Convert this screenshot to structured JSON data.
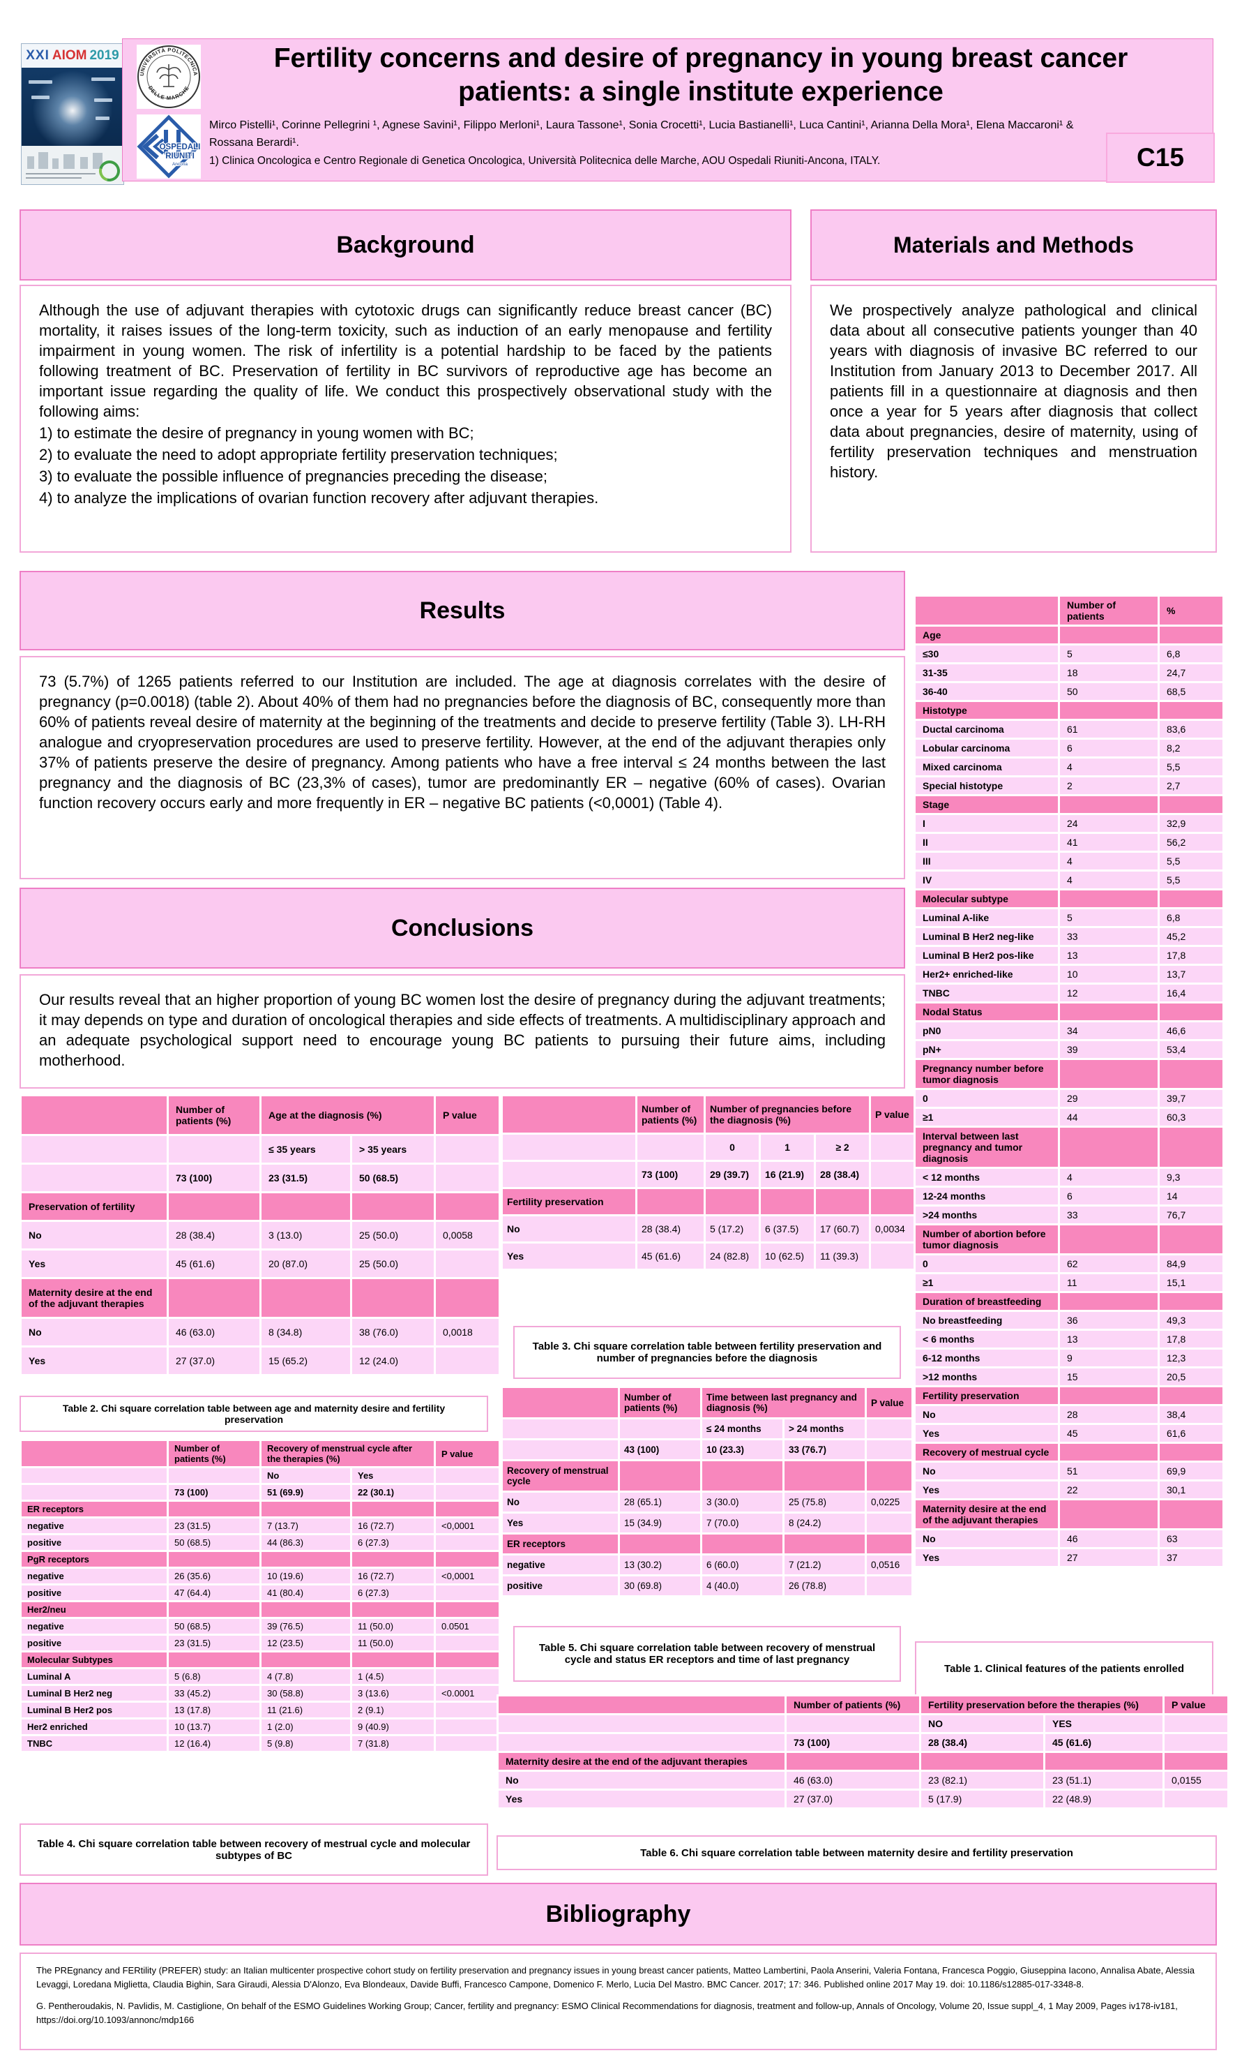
{
  "header": {
    "title_line1": "Fertility concerns and desire of pregnancy in young breast cancer",
    "title_line2": "patients: a single institute experience",
    "authors": "Mirco Pistelli¹, Corinne Pellegrini ¹, Agnese Savini¹, Filippo Merloni¹, Laura Tassone¹, Sonia Crocetti¹, Lucia Bastianelli¹, Luca Cantini¹,  Arianna Della Mora¹, Elena Maccaroni¹ & Rossana Berardi¹.",
    "affiliation": "1) Clinica Oncologica e Centro Regionale di Genetica Oncologica, Università Politecnica delle Marche, AOU Ospedali Riuniti-Ancona,  ITALY.",
    "badge": "C15",
    "congress": {
      "xxi": "XXI",
      "aiom": "AIOM",
      "year": "2019"
    },
    "university_seal": {
      "top": "UNIVERSITÀ POLITECNICA",
      "bottom": "DELLE MARCHE"
    },
    "hospital": {
      "line1": "OSPEDALI",
      "line2": "RIUNITI",
      "line3": "Ancona"
    }
  },
  "background": {
    "title": "Background",
    "intro": "Although the use of adjuvant therapies with cytotoxic drugs can significantly reduce breast cancer (BC) mortality, it raises issues of the long-term toxicity, such as induction of an early menopause and fertility impairment in young women. The risk of infertility is a potential hardship to be faced by the patients following treatment of BC. Preservation of fertility in BC survivors of reproductive age has become an important issue regarding the quality of life. We conduct this prospectively observational study with the following aims:",
    "aims": [
      "1)   to estimate the desire of pregnancy in young women with BC;",
      "2)   to evaluate the need to adopt appropriate fertility preservation techniques;",
      "3)   to evaluate the possible influence of pregnancies preceding the disease;",
      "4)   to analyze the implications of ovarian function recovery after adjuvant therapies."
    ]
  },
  "methods": {
    "title": "Materials and Methods",
    "body": "We prospectively analyze pathological and clinical data about all consecutive patients younger than 40 years with diagnosis of invasive BC referred to our Institution from January 2013 to December 2017. All patients fill in a questionnaire at diagnosis and then once a year for 5 years after diagnosis that collect data about pregnancies, desire of maternity, using of fertility preservation techniques and menstruation history."
  },
  "results": {
    "title": "Results",
    "body": "73 (5.7%) of 1265 patients referred to our Institution are included. The age at diagnosis correlates with the desire of pregnancy (p=0.0018) (table 2). About 40% of them had no pregnancies before the diagnosis of BC, consequently more than 60% of patients reveal desire of maternity at the beginning of the treatments and decide to preserve fertility (Table 3). LH-RH analogue and cryopreservation procedures are used to preserve fertility. However, at the end of the adjuvant therapies only 37% of patients preserve the desire of pregnancy. Among patients who have a free interval ≤ 24 months between the last pregnancy and the diagnosis of BC (23,3% of cases), tumor are predominantly ER – negative (60% of cases). Ovarian function recovery occurs early and more frequently in ER – negative BC patients (<0,0001) (Table 4)."
  },
  "conclusions": {
    "title": "Conclusions",
    "body": "Our results reveal that an higher proportion of young BC women lost the desire of pregnancy during the adjuvant treatments; it may depends on type and duration of oncological therapies and side effects of treatments. A multidisciplinary approach and an adequate psychological support need to encourage young BC patients to pursuing their future aims, including motherhood."
  },
  "table1": {
    "caption": "Table 1. Clinical features of the patients enrolled",
    "headers": [
      "",
      "Number of patients",
      "%"
    ],
    "rows": [
      {
        "type": "section",
        "label": "Age"
      },
      {
        "type": "data",
        "label": "≤30",
        "n": "5",
        "pct": "6,8"
      },
      {
        "type": "data",
        "label": "31-35",
        "n": "18",
        "pct": "24,7"
      },
      {
        "type": "data",
        "label": "36-40",
        "n": "50",
        "pct": "68,5"
      },
      {
        "type": "section",
        "label": "Histotype"
      },
      {
        "type": "data",
        "label": "Ductal carcinoma",
        "n": "61",
        "pct": "83,6"
      },
      {
        "type": "data",
        "label": "Lobular carcinoma",
        "n": "6",
        "pct": "8,2"
      },
      {
        "type": "data",
        "label": "Mixed carcinoma",
        "n": "4",
        "pct": "5,5"
      },
      {
        "type": "data",
        "label": "Special histotype",
        "n": "2",
        "pct": "2,7"
      },
      {
        "type": "section",
        "label": "Stage"
      },
      {
        "type": "data",
        "label": "I",
        "n": "24",
        "pct": "32,9"
      },
      {
        "type": "data",
        "label": "II",
        "n": "41",
        "pct": "56,2"
      },
      {
        "type": "data",
        "label": "III",
        "n": "4",
        "pct": "5,5"
      },
      {
        "type": "data",
        "label": "IV",
        "n": "4",
        "pct": "5,5"
      },
      {
        "type": "section",
        "label": "Molecular subtype"
      },
      {
        "type": "data",
        "label": "Luminal A-like",
        "n": "5",
        "pct": "6,8"
      },
      {
        "type": "data",
        "label": "Luminal B Her2 neg-like",
        "n": "33",
        "pct": "45,2"
      },
      {
        "type": "data",
        "label": "Luminal B Her2 pos-like",
        "n": "13",
        "pct": "17,8"
      },
      {
        "type": "data",
        "label": "Her2+ enriched-like",
        "n": "10",
        "pct": "13,7"
      },
      {
        "type": "data",
        "label": "TNBC",
        "n": "12",
        "pct": "16,4"
      },
      {
        "type": "section",
        "label": "Nodal Status"
      },
      {
        "type": "data",
        "label": "pN0",
        "n": "34",
        "pct": "46,6"
      },
      {
        "type": "data",
        "label": "pN+",
        "n": "39",
        "pct": "53,4"
      },
      {
        "type": "section",
        "label": "Pregnancy number before tumor diagnosis"
      },
      {
        "type": "data",
        "label": "0",
        "n": "29",
        "pct": "39,7"
      },
      {
        "type": "data",
        "label": "≥1",
        "n": "44",
        "pct": "60,3"
      },
      {
        "type": "section",
        "label": "Interval between last pregnancy and tumor diagnosis"
      },
      {
        "type": "data",
        "label": "< 12 months",
        "n": "4",
        "pct": "9,3"
      },
      {
        "type": "data",
        "label": "12-24 months",
        "n": "6",
        "pct": "14"
      },
      {
        "type": "data",
        "label": ">24 months",
        "n": "33",
        "pct": "76,7"
      },
      {
        "type": "section",
        "label": "Number of abortion before tumor diagnosis"
      },
      {
        "type": "data",
        "label": "0",
        "n": "62",
        "pct": "84,9"
      },
      {
        "type": "data",
        "label": "≥1",
        "n": "11",
        "pct": "15,1"
      },
      {
        "type": "section",
        "label": "Duration of breastfeeding"
      },
      {
        "type": "data",
        "label": "No breastfeeding",
        "n": "36",
        "pct": "49,3"
      },
      {
        "type": "data",
        "label": "< 6 months",
        "n": "13",
        "pct": "17,8"
      },
      {
        "type": "data",
        "label": "6-12 months",
        "n": "9",
        "pct": "12,3"
      },
      {
        "type": "data",
        "label": ">12 months",
        "n": "15",
        "pct": "20,5"
      },
      {
        "type": "section",
        "label": "Fertility preservation"
      },
      {
        "type": "data",
        "label": "No",
        "n": "28",
        "pct": "38,4"
      },
      {
        "type": "data",
        "label": "Yes",
        "n": "45",
        "pct": "61,6"
      },
      {
        "type": "section",
        "label": "Recovery of mestrual cycle"
      },
      {
        "type": "data",
        "label": "No",
        "n": "51",
        "pct": "69,9"
      },
      {
        "type": "data",
        "label": "Yes",
        "n": "22",
        "pct": "30,1"
      },
      {
        "type": "section",
        "label": "Maternity desire at the end of the adjuvant therapies"
      },
      {
        "type": "data",
        "label": "No",
        "n": "46",
        "pct": "63"
      },
      {
        "type": "data",
        "label": "Yes",
        "n": "27",
        "pct": "37"
      }
    ]
  },
  "table2": {
    "caption": "Table 2. Chi square correlation table between age and maternity desire and fertility preservation",
    "col_n": "Number of patients (%)",
    "group": "Age at the diagnosis (%)",
    "group_cols": [
      "≤ 35 years",
      "> 35 years"
    ],
    "col_p": "P value",
    "total": {
      "n": "73 (100)",
      "cells": [
        "23 (31.5)",
        "50 (68.5)"
      ]
    },
    "sections": [
      {
        "label": "Preservation of fertility",
        "rows": [
          {
            "label": "No",
            "n": "28 (38.4)",
            "cells": [
              "3 (13.0)",
              "25 (50.0)"
            ],
            "p": "0,0058"
          },
          {
            "label": "Yes",
            "n": "45 (61.6)",
            "cells": [
              "20 (87.0)",
              "25 (50.0)"
            ],
            "p": ""
          }
        ]
      },
      {
        "label": "Maternity desire at the end of the adjuvant therapies",
        "rows": [
          {
            "label": "No",
            "n": "46 (63.0)",
            "cells": [
              "8 (34.8)",
              "38 (76.0)"
            ],
            "p": "0,0018"
          },
          {
            "label": "Yes",
            "n": "27 (37.0)",
            "cells": [
              "15 (65.2)",
              "12 (24.0)"
            ],
            "p": ""
          }
        ]
      }
    ]
  },
  "table3": {
    "caption": "Table 3. Chi square correlation table between fertility preservation and number of pregnancies before the diagnosis",
    "col_n": "Number of patients (%)",
    "group": "Number of pregnancies before the diagnosis (%)",
    "group_cols": [
      "0",
      "1",
      "≥ 2"
    ],
    "col_p": "P value",
    "total": {
      "n": "73 (100)",
      "cells": [
        "29 (39.7)",
        "16 (21.9)",
        "28 (38.4)"
      ]
    },
    "sections": [
      {
        "label": "Fertility preservation",
        "rows": [
          {
            "label": "No",
            "n": "28 (38.4)",
            "cells": [
              "5 (17.2)",
              "6 (37.5)",
              "17 (60.7)"
            ],
            "p": "0,0034"
          },
          {
            "label": "Yes",
            "n": "45 (61.6)",
            "cells": [
              "24 (82.8)",
              "10 (62.5)",
              "11 (39.3)"
            ],
            "p": ""
          }
        ]
      }
    ]
  },
  "table4": {
    "caption": "Table 4. Chi square correlation table between recovery of mestrual cycle and molecular subtypes of BC",
    "col_n": "Number of patients (%)",
    "group": "Recovery of menstrual cycle after the therapies (%)",
    "group_cols": [
      "No",
      "Yes"
    ],
    "col_p": "P value",
    "total": {
      "n": "73 (100)",
      "cells": [
        "51 (69.9)",
        "22 (30.1)"
      ]
    },
    "sections": [
      {
        "label": "ER receptors",
        "rows": [
          {
            "label": "negative",
            "n": "23 (31.5)",
            "cells": [
              "7 (13.7)",
              "16 (72.7)"
            ],
            "p": "<0,0001"
          },
          {
            "label": "positive",
            "n": "50 (68.5)",
            "cells": [
              "44 (86.3)",
              "6 (27.3)"
            ],
            "p": ""
          }
        ]
      },
      {
        "label": "PgR receptors",
        "rows": [
          {
            "label": "negative",
            "n": "26 (35.6)",
            "cells": [
              "10 (19.6)",
              "16 (72.7)"
            ],
            "p": "<0,0001"
          },
          {
            "label": "positive",
            "n": "47 (64.4)",
            "cells": [
              "41 (80.4)",
              "6 (27.3)"
            ],
            "p": ""
          }
        ]
      },
      {
        "label": "Her2/neu",
        "rows": [
          {
            "label": "negative",
            "n": "50 (68.5)",
            "cells": [
              "39 (76.5)",
              "11 (50.0)"
            ],
            "p": "0.0501"
          },
          {
            "label": "positive",
            "n": "23 (31.5)",
            "cells": [
              "12 (23.5)",
              "11 (50.0)"
            ],
            "p": ""
          }
        ]
      },
      {
        "label": "Molecular Subtypes",
        "rows": [
          {
            "label": "Luminal A",
            "n": "5 (6.8)",
            "cells": [
              "4 (7.8)",
              "1 (4.5)"
            ],
            "p": ""
          },
          {
            "label": "Luminal B Her2 neg",
            "n": "33 (45.2)",
            "cells": [
              "30 (58.8)",
              "3 (13.6)"
            ],
            "p": "<0.0001"
          },
          {
            "label": "Luminal B Her2 pos",
            "n": "13 (17.8)",
            "cells": [
              "11 (21.6)",
              "2 (9.1)"
            ],
            "p": ""
          },
          {
            "label": "Her2 enriched",
            "n": "10 (13.7)",
            "cells": [
              "1 (2.0)",
              "9 (40.9)"
            ],
            "p": ""
          },
          {
            "label": "TNBC",
            "n": "12 (16.4)",
            "cells": [
              "5 (9.8)",
              "7 (31.8)"
            ],
            "p": ""
          }
        ]
      }
    ]
  },
  "table5": {
    "caption": "Table 5. Chi square correlation table between recovery of menstrual cycle and status ER receptors and time of last pregnancy",
    "col_n": "Number of patients (%)",
    "group": "Time between last pregnancy and diagnosis (%)",
    "group_cols": [
      "≤ 24 months",
      "> 24 months"
    ],
    "col_p": "P value",
    "total": {
      "n": "43 (100)",
      "cells": [
        "10 (23.3)",
        "33 (76.7)"
      ]
    },
    "sections": [
      {
        "label": "Recovery of menstrual cycle",
        "rows": [
          {
            "label": "No",
            "n": "28 (65.1)",
            "cells": [
              "3 (30.0)",
              "25 (75.8)"
            ],
            "p": "0,0225"
          },
          {
            "label": "Yes",
            "n": "15 (34.9)",
            "cells": [
              "7 (70.0)",
              "8 (24.2)"
            ],
            "p": ""
          }
        ]
      },
      {
        "label": "ER receptors",
        "rows": [
          {
            "label": "negative",
            "n": "13 (30.2)",
            "cells": [
              "6 (60.0)",
              "7 (21.2)"
            ],
            "p": "0,0516"
          },
          {
            "label": "positive",
            "n": "30 (69.8)",
            "cells": [
              "4 (40.0)",
              "26 (78.8)"
            ],
            "p": ""
          }
        ]
      }
    ]
  },
  "table6": {
    "caption": "Table 6. Chi square correlation table between maternity desire and fertility preservation",
    "col_n": "Number of patients (%)",
    "group": "Fertility preservation before the therapies (%)",
    "group_cols": [
      "NO",
      "YES"
    ],
    "col_p": "P value",
    "total": {
      "n": "73 (100)",
      "cells": [
        "28 (38.4)",
        "45 (61.6)"
      ]
    },
    "sections": [
      {
        "label": "Maternity desire at the end of the adjuvant therapies",
        "rows": [
          {
            "label": "No",
            "n": "46 (63.0)",
            "cells": [
              "23 (82.1)",
              "23 (51.1)"
            ],
            "p": "0,0155"
          },
          {
            "label": "Yes",
            "n": "27 (37.0)",
            "cells": [
              "5 (17.9)",
              "22 (48.9)"
            ],
            "p": ""
          }
        ]
      }
    ]
  },
  "bibliography": {
    "title": "Bibliography",
    "refs": [
      "The PREgnancy and FERtility (PREFER) study: an Italian multicenter prospective cohort study on fertility preservation and pregnancy issues in young breast cancer patients, Matteo Lambertini, Paola Anserini, Valeria Fontana, Francesca Poggio, Giuseppina Iacono, Annalisa Abate, Alessia Levaggi, Loredana Miglietta, Claudia Bighin, Sara Giraudi, Alessia D'Alonzo, Eva Blondeaux, Davide Buffi, Francesco Campone, Domenico F. Merlo, Lucia Del Mastro. BMC Cancer. 2017; 17: 346. Published online 2017 May 19. doi: 10.1186/s12885-017-3348-8.",
      "G. Pentheroudakis, N. Pavlidis, M. Castiglione, On behalf of the ESMO Guidelines Working Group; Cancer, fertility and pregnancy: ESMO Clinical Recommendations for diagnosis, treatment and follow-up, Annals of Oncology, Volume 20, Issue suppl_4, 1 May 2009, Pages iv178-iv181, https://doi.org/10.1093/annonc/mdp166"
    ]
  },
  "colors": {
    "banner_pink": "#fbc9f0",
    "banner_border": "#ee7ec6",
    "box_border": "#f2a7d8",
    "table_header_pink": "#f887bd",
    "table_row_pink": "#fcd6f7",
    "hospital_blue": "#2a5caa",
    "aiom_red": "#d63334",
    "aiom_teal": "#2d9aa8",
    "congress_navy": "#0c2d52"
  }
}
